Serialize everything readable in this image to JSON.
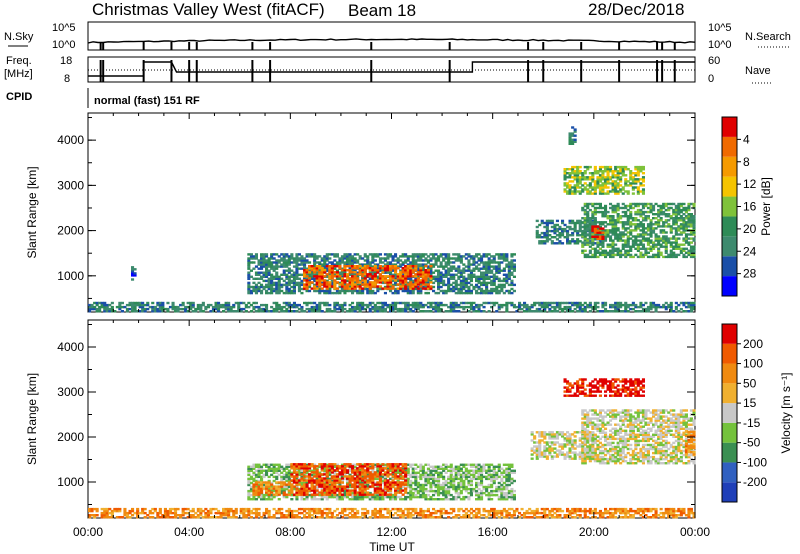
{
  "header": {
    "title": "Christmas Valley West (fitACF)",
    "beam": "Beam 18",
    "date": "28/Dec/2018"
  },
  "params": {
    "nsky_label": "N.Sky",
    "nsky_ticks": [
      "10^5",
      "10^0"
    ],
    "nsearch_label": "N.Search",
    "nsearch_ticks": [
      "10^5",
      "10^0"
    ],
    "freq_label_1": "Freq.",
    "freq_label_2": "[MHz]",
    "freq_ticks": [
      "18",
      "8"
    ],
    "nave_label": "Nave",
    "nave_ticks": [
      "60",
      "0"
    ],
    "cpid_label": "CPID",
    "cpid_value": "normal (fast) 151 RF"
  },
  "colors": {
    "power": [
      "#0000ff",
      "#1a4fa8",
      "#3d8a6e",
      "#2e8b57",
      "#7fc23a",
      "#f5c400",
      "#f59a00",
      "#f06a00",
      "#e00000"
    ],
    "velocity": [
      "#1f3fb8",
      "#3060c0",
      "#3a8f52",
      "#74c23c",
      "#c8c8c8",
      "#f0b030",
      "#f08a10",
      "#f05a00",
      "#e00000"
    ]
  },
  "chart_data": [
    {
      "type": "heatmap",
      "name": "power",
      "ylabel": "Slant Range [km]",
      "xlabel": "",
      "xticks": [
        "00:00",
        "04:00",
        "08:00",
        "12:00",
        "16:00",
        "20:00",
        "00:00"
      ],
      "yticks": [
        "1000",
        "2000",
        "3000",
        "4000"
      ],
      "colorbar_label": "Power [dB]",
      "colorbar_ticks": [
        "4",
        "8",
        "12",
        "16",
        "20",
        "24",
        "28"
      ],
      "regions": [
        {
          "t0": 0.0,
          "t1": 24.0,
          "r0": 200,
          "r1": 400,
          "level": 2
        },
        {
          "t0": 6.3,
          "t1": 16.8,
          "r0": 600,
          "r1": 1500,
          "level": 2
        },
        {
          "t0": 8.5,
          "t1": 13.5,
          "r0": 700,
          "r1": 1200,
          "level": 7
        },
        {
          "t0": 17.7,
          "t1": 20.3,
          "r0": 1700,
          "r1": 2200,
          "level": 2
        },
        {
          "t0": 18.8,
          "t1": 22.0,
          "r0": 2800,
          "r1": 3400,
          "level": 4
        },
        {
          "t0": 19.5,
          "t1": 24.0,
          "r0": 1400,
          "r1": 2600,
          "level": 3
        },
        {
          "t0": 19.9,
          "t1": 20.4,
          "r0": 1800,
          "r1": 2100,
          "level": 8
        },
        {
          "t0": 1.7,
          "t1": 1.9,
          "r0": 900,
          "r1": 1200,
          "level": 1
        },
        {
          "t0": 19.0,
          "t1": 19.3,
          "r0": 3900,
          "r1": 4300,
          "level": 2
        }
      ]
    },
    {
      "type": "heatmap",
      "name": "velocity",
      "ylabel": "Slant Range [km]",
      "xlabel": "Time UT",
      "xticks": [
        "00:00",
        "04:00",
        "08:00",
        "12:00",
        "16:00",
        "20:00",
        "00:00"
      ],
      "yticks": [
        "1000",
        "2000",
        "3000",
        "4000"
      ],
      "colorbar_label": "Velocity [m s⁻¹]",
      "colorbar_ticks": [
        "200",
        "100",
        "50",
        "15",
        "-15",
        "-50",
        "-100",
        "-200"
      ],
      "regions": [
        {
          "t0": 0.0,
          "t1": 24.0,
          "r0": 200,
          "r1": 400,
          "level": 6
        },
        {
          "t0": 6.3,
          "t1": 16.8,
          "r0": 600,
          "r1": 1400,
          "level": 3
        },
        {
          "t0": 8.0,
          "t1": 12.5,
          "r0": 700,
          "r1": 1400,
          "level": 7
        },
        {
          "t0": 6.5,
          "t1": 8.0,
          "r0": 700,
          "r1": 1000,
          "level": 6
        },
        {
          "t0": 18.8,
          "t1": 22.0,
          "r0": 2900,
          "r1": 3300,
          "level": 8
        },
        {
          "t0": 19.5,
          "t1": 24.0,
          "r0": 1400,
          "r1": 2600,
          "level": 4
        },
        {
          "t0": 17.5,
          "t1": 20.0,
          "r0": 1500,
          "r1": 2100,
          "level": 4
        },
        {
          "t0": 23.6,
          "t1": 24.0,
          "r0": 1600,
          "r1": 2100,
          "level": 6
        }
      ]
    }
  ]
}
